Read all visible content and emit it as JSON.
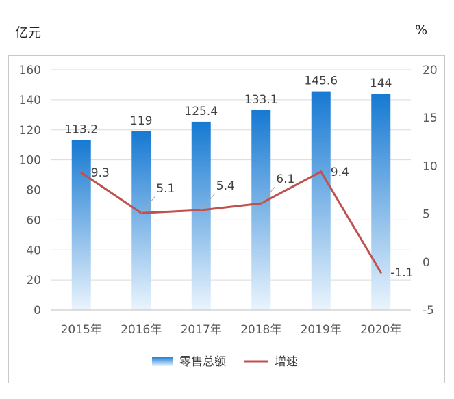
{
  "units": {
    "left": "亿元",
    "right": "%"
  },
  "chart_data": {
    "type": "bar",
    "categories": [
      "2015年",
      "2016年",
      "2017年",
      "2018年",
      "2019年",
      "2020年"
    ],
    "series": [
      {
        "name": "零售总额",
        "type": "bar",
        "axis": "left",
        "values": [
          113.2,
          119,
          125.4,
          133.1,
          145.6,
          144
        ],
        "labels": [
          "113.2",
          "119",
          "125.4",
          "133.1",
          "145.6",
          "144"
        ]
      },
      {
        "name": "增速",
        "type": "line",
        "axis": "right",
        "values": [
          9.3,
          5.1,
          5.4,
          6.1,
          9.4,
          -1.1
        ],
        "labels": [
          "9.3",
          "5.1",
          "5.4",
          "6.1",
          "9.4",
          "-1.1"
        ]
      }
    ],
    "y_left": {
      "ylim": [
        0,
        160
      ],
      "ticks": [
        "0",
        "20",
        "40",
        "60",
        "80",
        "100",
        "120",
        "140",
        "160"
      ]
    },
    "y_right": {
      "ylim": [
        -5,
        20
      ],
      "ticks": [
        "-5",
        "0",
        "5",
        "10",
        "15",
        "20"
      ]
    },
    "grid": true,
    "legend_position": "bottom",
    "colors": {
      "bar_top": "#1679d2",
      "bar_bottom": "#eaf4fd",
      "line": "#c0504d",
      "grid": "#d9d9d9"
    }
  }
}
